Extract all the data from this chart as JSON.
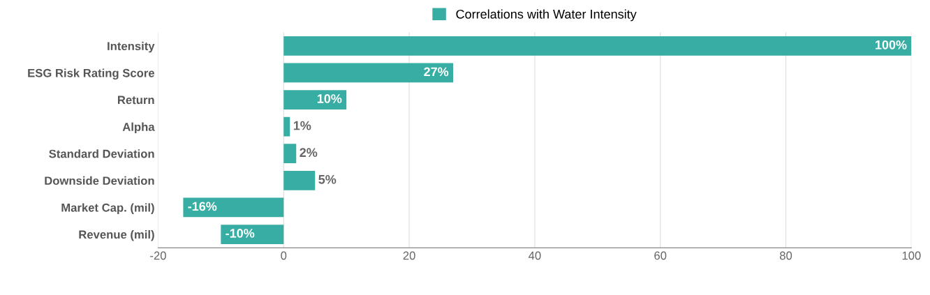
{
  "chart_data": {
    "type": "bar",
    "orientation": "horizontal",
    "categories": [
      "Intensity",
      "ESG Risk Rating Score",
      "Return",
      "Alpha",
      "Standard Deviation",
      "Downside Deviation",
      "Market Cap. (mil)",
      "Revenue (mil)"
    ],
    "series": [
      {
        "name": "Correlations with Water Intensity",
        "color": "#37ada3",
        "values": [
          100,
          27,
          10,
          1,
          2,
          5,
          -16,
          -10
        ],
        "value_labels": [
          "100%",
          "27%",
          "10%",
          "1%",
          "2%",
          "5%",
          "-16%",
          "-10%"
        ]
      }
    ],
    "xlim": [
      -20,
      100
    ],
    "xticks": [
      -20,
      0,
      20,
      40,
      60,
      80,
      100
    ],
    "grid": "x",
    "legend": "top"
  }
}
